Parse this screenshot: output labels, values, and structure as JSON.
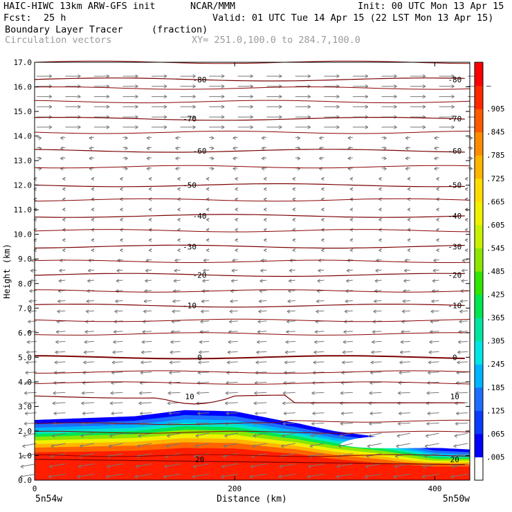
{
  "header": {
    "model": "HAIC-HIWC 13km ARW-GFS init",
    "org": "NCAR/MMM",
    "init": "Init: 00 UTC Mon 13 Apr 15",
    "fcst_label": "Fcst:",
    "fcst_value": "25 h",
    "valid": "Valid: 01 UTC Tue 14 Apr 15 (22 LST Mon 13 Apr 15)",
    "field": "Boundary Layer Tracer",
    "field_units": "(fraction)",
    "vectors": "Circulation vectors",
    "xy": "XY= 251.0,100.0 to 284.7,100.0"
  },
  "chart_data": {
    "type": "cross-section",
    "xlabel": "Distance (km)",
    "ylabel": "Height (km)",
    "xlim": [
      0,
      435
    ],
    "ylim": [
      0,
      17
    ],
    "x_ticks": [
      0,
      200,
      400
    ],
    "y_ticks": [
      "0.0",
      "1.0",
      "2.0",
      "3.0",
      "4.0",
      "5.0",
      "6.0",
      "7.0",
      "8.0",
      "9.0",
      "10.0",
      "11.0",
      "12.0",
      "13.0",
      "14.0",
      "15.0",
      "16.0",
      "17.0"
    ],
    "x_end_labels": {
      "left": "5n54w",
      "right": "5n50w"
    },
    "colorbar": {
      "labels": [
        ".005",
        ".065",
        ".125",
        ".185",
        ".245",
        ".305",
        ".365",
        ".425",
        ".485",
        ".545",
        ".605",
        ".665",
        ".725",
        ".785",
        ".845",
        ".905",
        "–"
      ],
      "colors": [
        "#ffffff",
        "#0000ff",
        "#0a3cff",
        "#1e6eff",
        "#00b4ff",
        "#00e6e6",
        "#00e6a0",
        "#00e650",
        "#30e600",
        "#8ce600",
        "#c8f000",
        "#f0f000",
        "#ffdc00",
        "#ffb400",
        "#ff8c00",
        "#ff5a00",
        "#ff2800",
        "#ff0000"
      ]
    },
    "temperature_contours": [
      {
        "label": "-80",
        "height_km": 16.3
      },
      {
        "label": "-70",
        "height_km": 14.7
      },
      {
        "label": "-60",
        "height_km": 13.4
      },
      {
        "label": "-50",
        "height_km": 12.0
      },
      {
        "label": "-40",
        "height_km": 10.75
      },
      {
        "label": "-30",
        "height_km": 9.5
      },
      {
        "label": "-20",
        "height_km": 8.35
      },
      {
        "label": "-10",
        "height_km": 7.1
      },
      {
        "label": "0",
        "height_km": 5.0
      },
      {
        "label": "10",
        "height_km": 3.4
      },
      {
        "label": "20",
        "height_km": 0.85
      }
    ],
    "tracer_top_km": [
      {
        "x": 0,
        "top": 2.45
      },
      {
        "x": 100,
        "top": 2.6
      },
      {
        "x": 150,
        "top": 2.85
      },
      {
        "x": 200,
        "top": 2.8
      },
      {
        "x": 250,
        "top": 2.4
      },
      {
        "x": 300,
        "top": 2.1
      },
      {
        "x": 350,
        "top": 1.95
      },
      {
        "x": 400,
        "top": 1.6
      },
      {
        "x": 435,
        "top": 1.6
      }
    ],
    "wind_vectors": "westerly aloft (above ~14 km), easterly in mid and low levels"
  }
}
